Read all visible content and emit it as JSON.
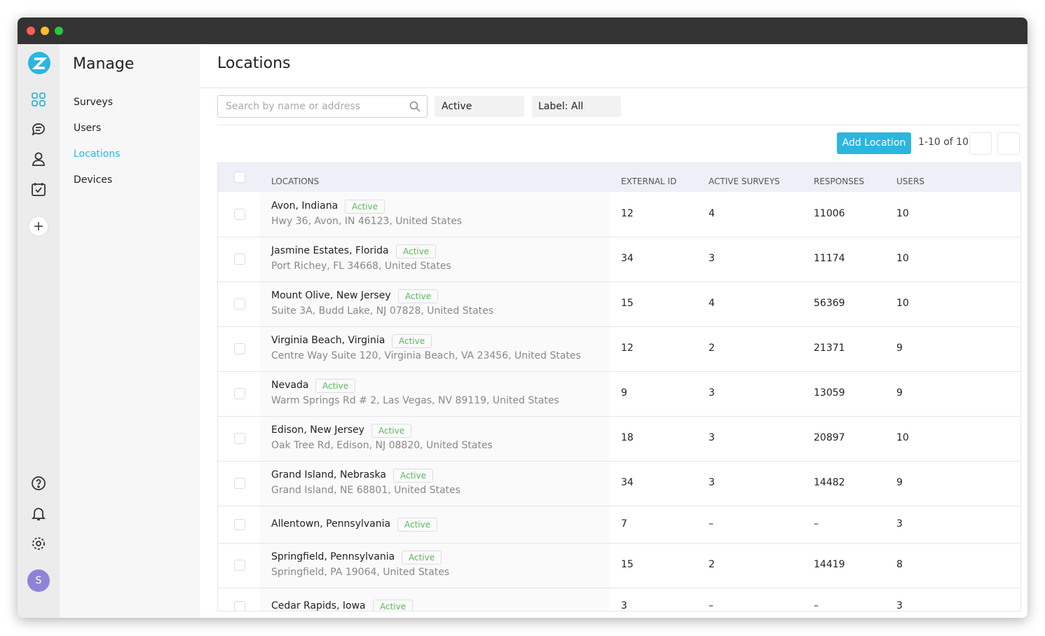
{
  "sidebar": {
    "title": "Manage",
    "nav": [
      "Surveys",
      "Users",
      "Locations",
      "Devices"
    ],
    "active_nav": 2,
    "avatar": "S"
  },
  "header": {
    "title": "Locations"
  },
  "filters": {
    "search_placeholder": "Search by name or address",
    "status": "Active",
    "label": "Label: All"
  },
  "toolbar": {
    "button": "Add Location",
    "pagination": "1-10 of 10"
  },
  "table": {
    "columns": [
      "LOCATIONS",
      "EXTERNAL ID",
      "ACTIVE SURVEYS",
      "RESPONSES",
      "USERS"
    ],
    "rows": [
      {
        "name": "Avon, Indiana",
        "status": "Active",
        "address": "Hwy 36, Avon, IN 46123, United States",
        "external_id": 12,
        "active_surveys": 4,
        "responses": 11006,
        "users": 10
      },
      {
        "name": "Jasmine Estates, Florida",
        "status": "Active",
        "address": "Port Richey, FL 34668, United States",
        "external_id": 34,
        "active_surveys": 3,
        "responses": 11174,
        "users": 10
      },
      {
        "name": "Mount Olive, New Jersey",
        "status": "Active",
        "address": "Suite 3A, Budd Lake, NJ 07828, United States",
        "external_id": 15,
        "active_surveys": 4,
        "responses": 56369,
        "users": 10
      },
      {
        "name": "Virginia Beach, Virginia",
        "status": "Active",
        "address": "Centre Way Suite 120, Virginia Beach, VA 23456, United States",
        "external_id": 12,
        "active_surveys": 2,
        "responses": 21371,
        "users": 9
      },
      {
        "name": "Nevada",
        "status": "Active",
        "address": "Warm Springs Rd # 2, Las Vegas, NV 89119, United States",
        "external_id": 9,
        "active_surveys": 3,
        "responses": 13059,
        "users": 9
      },
      {
        "name": "Edison, New Jersey",
        "status": "Active",
        "address": "Oak Tree Rd, Edison, NJ 08820, United States",
        "external_id": 18,
        "active_surveys": 3,
        "responses": 20897,
        "users": 10
      },
      {
        "name": "Grand Island, Nebraska",
        "status": "Active",
        "address": "Grand Island, NE 68801, United States",
        "external_id": 34,
        "active_surveys": 3,
        "responses": 14482,
        "users": 9
      },
      {
        "name": "Allentown, Pennsylvania",
        "status": "Active",
        "external_id": 7,
        "active_surveys": "–",
        "responses": "–",
        "users": 3
      },
      {
        "name": "Springfield, Pennsylvania",
        "status": "Active",
        "address": "Springfield, PA 19064, United States",
        "external_id": 15,
        "active_surveys": 2,
        "responses": 14419,
        "users": 8
      },
      {
        "name": "Cedar Rapids, Iowa",
        "status": "Active",
        "external_id": 3,
        "active_surveys": "–",
        "responses": "–",
        "users": 3
      }
    ]
  }
}
